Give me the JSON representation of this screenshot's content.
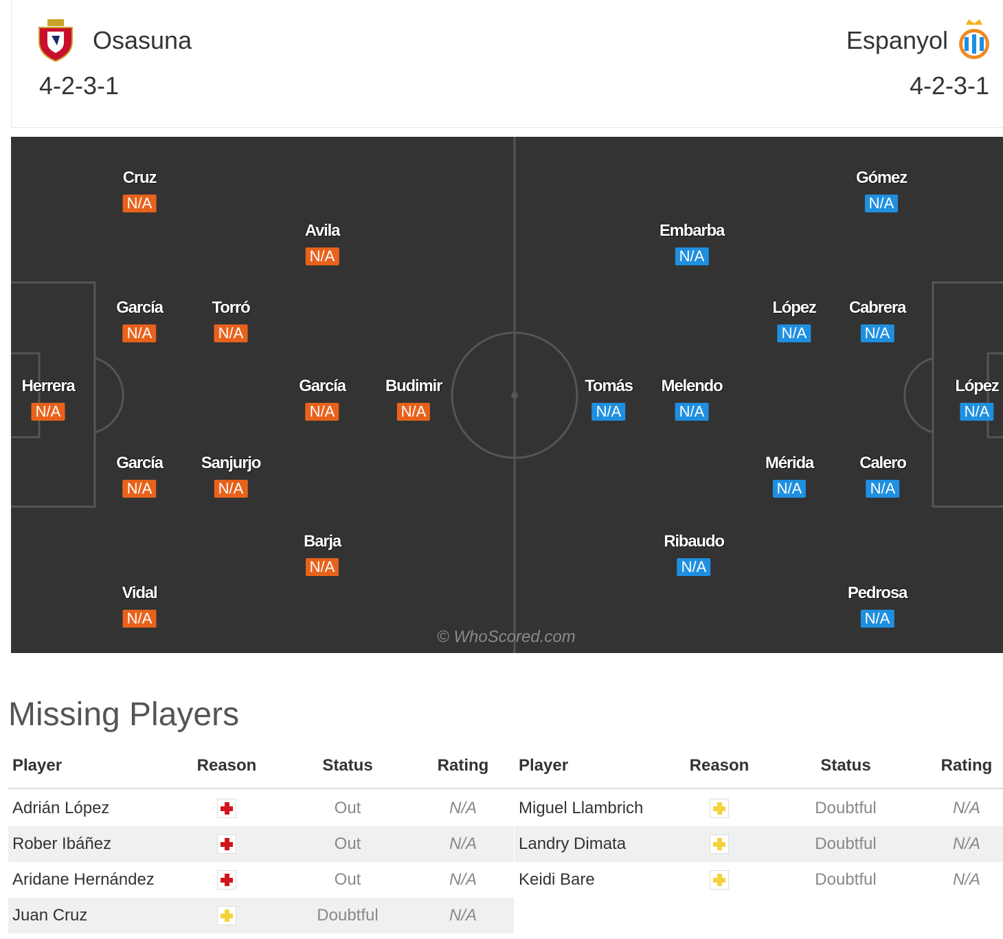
{
  "home": {
    "name": "Osasuna",
    "formation": "4-2-3-1",
    "color": "#e8621c",
    "players": [
      {
        "name": "Cruz",
        "rating": "N/A"
      },
      {
        "name": "Avila",
        "rating": "N/A"
      },
      {
        "name": "García",
        "rating": "N/A"
      },
      {
        "name": "Torró",
        "rating": "N/A"
      },
      {
        "name": "Herrera",
        "rating": "N/A"
      },
      {
        "name": "García",
        "rating": "N/A"
      },
      {
        "name": "Budimir",
        "rating": "N/A"
      },
      {
        "name": "García",
        "rating": "N/A"
      },
      {
        "name": "Sanjurjo",
        "rating": "N/A"
      },
      {
        "name": "Barja",
        "rating": "N/A"
      },
      {
        "name": "Vidal",
        "rating": "N/A"
      }
    ]
  },
  "away": {
    "name": "Espanyol",
    "formation": "4-2-3-1",
    "color": "#1f8fe0",
    "players": [
      {
        "name": "Gómez",
        "rating": "N/A"
      },
      {
        "name": "Embarba",
        "rating": "N/A"
      },
      {
        "name": "López",
        "rating": "N/A"
      },
      {
        "name": "Cabrera",
        "rating": "N/A"
      },
      {
        "name": "Tomás",
        "rating": "N/A"
      },
      {
        "name": "Melendo",
        "rating": "N/A"
      },
      {
        "name": "López",
        "rating": "N/A"
      },
      {
        "name": "Mérida",
        "rating": "N/A"
      },
      {
        "name": "Calero",
        "rating": "N/A"
      },
      {
        "name": "Ribaudo",
        "rating": "N/A"
      },
      {
        "name": "Pedrosa",
        "rating": "N/A"
      }
    ]
  },
  "watermark": "© WhoScored.com",
  "missing": {
    "title": "Missing Players",
    "headers": {
      "player": "Player",
      "reason": "Reason",
      "status": "Status",
      "rating": "Rating"
    },
    "home": [
      {
        "player": "Adrián López",
        "reason": "injury",
        "status": "Out",
        "rating": "N/A"
      },
      {
        "player": "Rober Ibáñez",
        "reason": "injury",
        "status": "Out",
        "rating": "N/A"
      },
      {
        "player": "Aridane Hernández",
        "reason": "injury",
        "status": "Out",
        "rating": "N/A"
      },
      {
        "player": "Juan Cruz",
        "reason": "doubtful",
        "status": "Doubtful",
        "rating": "N/A"
      }
    ],
    "away": [
      {
        "player": "Miguel Llambrich",
        "reason": "doubtful",
        "status": "Doubtful",
        "rating": "N/A"
      },
      {
        "player": "Landry Dimata",
        "reason": "doubtful",
        "status": "Doubtful",
        "rating": "N/A"
      },
      {
        "player": "Keidi Bare",
        "reason": "doubtful",
        "status": "Doubtful",
        "rating": "N/A"
      }
    ]
  }
}
